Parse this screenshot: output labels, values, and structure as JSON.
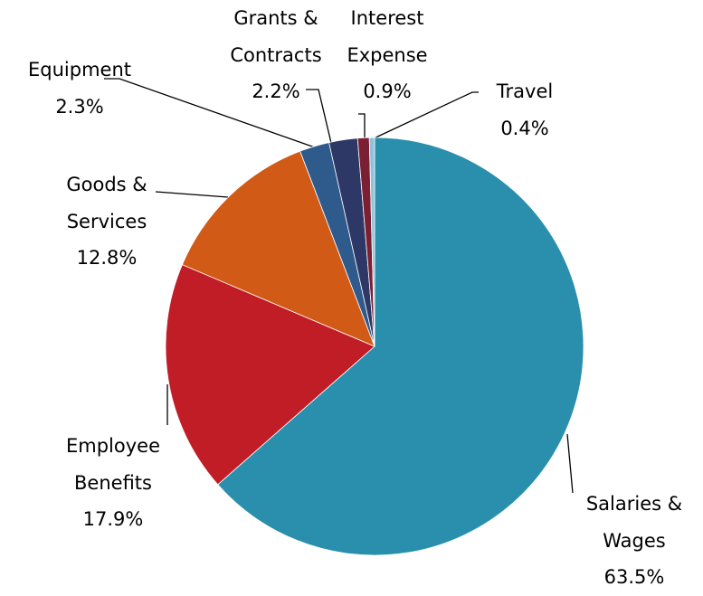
{
  "chart_data": {
    "type": "pie",
    "categories": [
      "Salaries & Wages",
      "Employee Benefits",
      "Goods & Services",
      "Equipment",
      "Grants & Contracts",
      "Interest Expense",
      "Travel"
    ],
    "values": [
      63.5,
      17.9,
      12.8,
      2.3,
      2.2,
      0.9,
      0.4
    ],
    "value_labels": [
      "63.5%",
      "17.9%",
      "12.8%",
      "2.3%",
      "2.2%",
      "0.9%",
      "0.4%"
    ],
    "colors": [
      "#2a8fad",
      "#c11d27",
      "#d15a17",
      "#2f5a8c",
      "#2e3866",
      "#7b1f33",
      "#8ec3da"
    ]
  }
}
